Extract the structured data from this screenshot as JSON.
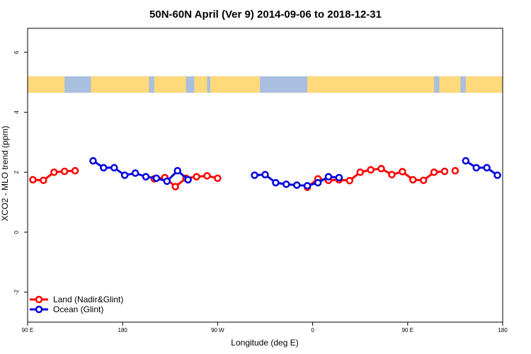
{
  "chart_data": {
    "type": "line",
    "title": "50N-60N April (Ver 9)   2014-09-06 to 2018-12-31",
    "xlabel": "Longitude (deg E)",
    "ylabel": "XCO2 - MLO trend (ppm)",
    "xlim": [
      90,
      450
    ],
    "ylim": [
      -3.0,
      6.8
    ],
    "x_ticks": [
      90,
      180,
      270,
      360,
      450
    ],
    "x_tick_labels": [
      "90 E",
      "180",
      "90 W",
      "0",
      "90 E",
      "180"
    ],
    "x_tick_positions": [
      90,
      180,
      270,
      360,
      450,
      540
    ],
    "y_ticks": [
      -2,
      0,
      2,
      4,
      6
    ],
    "y_tick_labels": [
      "-2",
      "0",
      "2",
      "4",
      "6"
    ],
    "legend_position": "bottom-left",
    "land_band": {
      "y_range": [
        4.65,
        5.2
      ],
      "land_color": "#ffd97a",
      "ocean_color": "#a9bfe0"
    },
    "series": [
      {
        "name": "Land (Nadir&Glint)",
        "color": "#ff0000",
        "segments": [
          {
            "x": [
              95,
              105,
              115,
              125,
              135
            ],
            "y": [
              1.75,
              1.73,
              2.0,
              2.03,
              2.05
            ]
          },
          {
            "x": [
              210,
              220,
              230,
              240,
              250,
              260,
              270
            ],
            "y": [
              1.78,
              1.82,
              1.52,
              1.8,
              1.85,
              1.88,
              1.8
            ]
          },
          {
            "x": [
              355,
              365,
              375,
              385,
              395,
              405,
              415,
              425,
              435,
              445,
              455,
              465,
              475,
              485
            ],
            "y": [
              1.5,
              1.78,
              1.73,
              1.75,
              1.72,
              2.0,
              2.08,
              2.12,
              1.92,
              2.02,
              1.75,
              1.73,
              2.0,
              2.03
            ]
          },
          {
            "x": [
              495
            ],
            "y": [
              2.05
            ]
          }
        ]
      },
      {
        "name": "Ocean (Glint)",
        "color": "#0000dd",
        "segments": [
          {
            "x": [
              152,
              162,
              172,
              182,
              192,
              202,
              212,
              222,
              232,
              242
            ],
            "y": [
              2.38,
              2.15,
              2.15,
              1.9,
              1.97,
              1.85,
              1.8,
              1.7,
              2.05,
              1.75
            ]
          },
          {
            "x": [
              305,
              315,
              325,
              335,
              345,
              355,
              365,
              375,
              385
            ],
            "y": [
              1.9,
              1.92,
              1.65,
              1.6,
              1.57,
              1.55,
              1.65,
              1.85,
              1.82
            ]
          },
          {
            "x": [
              505,
              515,
              525,
              535
            ],
            "y": [
              2.38,
              2.15,
              2.15,
              1.9
            ]
          }
        ]
      }
    ]
  }
}
